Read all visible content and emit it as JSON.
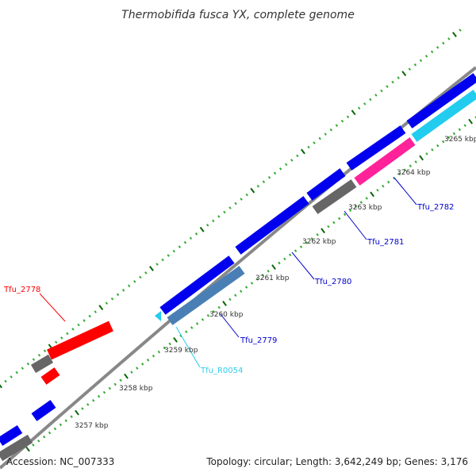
{
  "title": "Thermobifida fusca YX, complete genome",
  "footer": {
    "accession": "Accession: NC_007333",
    "summary": "Topology: circular; Length: 3,642,249 bp; Genes: 3,176"
  },
  "scale_labels": [
    "3257 kbp",
    "3258 kbp",
    "3259 kbp",
    "3260 kbp",
    "3261 kbp",
    "3262 kbp",
    "3263 kbp",
    "3264 kbp",
    "3265 kbp"
  ],
  "gene_labels": [
    {
      "text": "Tfu_2778",
      "color": "#ff0000"
    },
    {
      "text": "Tfu_R0054",
      "color": "#33ccee"
    },
    {
      "text": "Tfu_2779",
      "color": "#0000cc"
    },
    {
      "text": "Tfu_2780",
      "color": "#0000cc"
    },
    {
      "text": "Tfu_2781",
      "color": "#0000cc"
    },
    {
      "text": "Tfu_2782",
      "color": "#0000cc"
    }
  ],
  "colors": {
    "backbone": "#888888",
    "tick_minor": "#33aa33",
    "tick_major": "#006600",
    "blue_gene": "#0000ee",
    "red_gene": "#ff0000",
    "gray_gene": "#666666",
    "steel_gene": "#4a7fb5",
    "cyan_gene": "#22ccee",
    "pink_gene": "#ff2299",
    "callout": "#0000cc"
  }
}
